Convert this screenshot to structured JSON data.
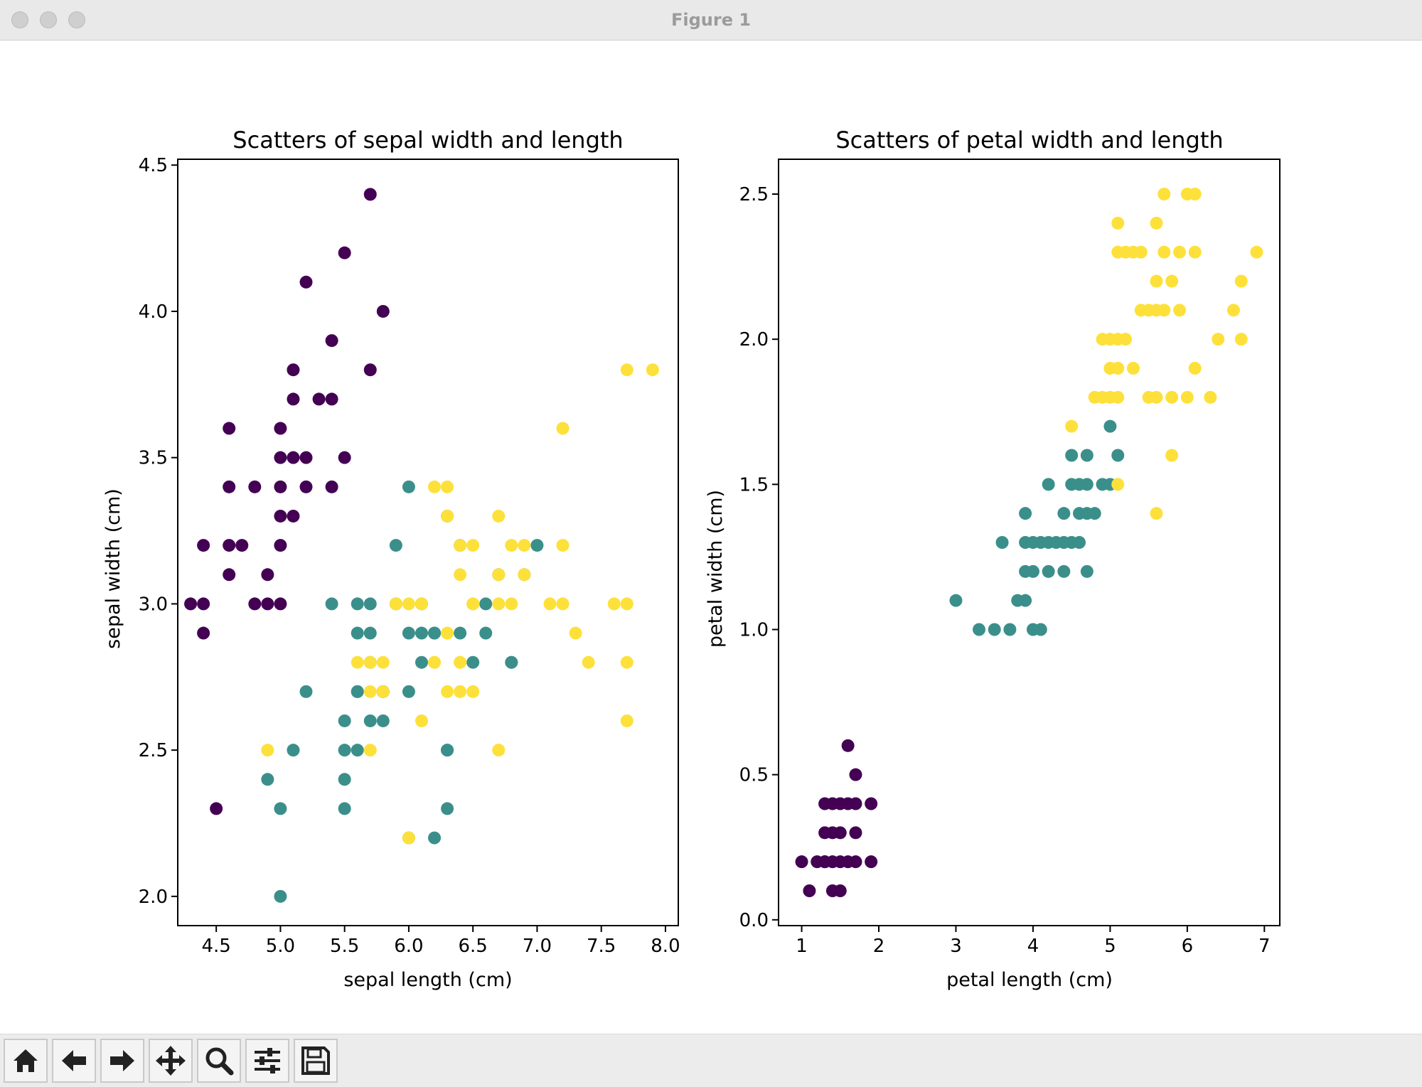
{
  "window": {
    "title": "Figure 1"
  },
  "toolbar": {
    "buttons": [
      {
        "name": "home-button",
        "icon": "home-icon"
      },
      {
        "name": "back-button",
        "icon": "arrow-left-icon"
      },
      {
        "name": "forward-button",
        "icon": "arrow-right-icon"
      },
      {
        "name": "pan-button",
        "icon": "move-icon"
      },
      {
        "name": "zoom-button",
        "icon": "search-icon"
      },
      {
        "name": "configure-subplots-button",
        "icon": "sliders-icon"
      },
      {
        "name": "save-button",
        "icon": "floppy-disk-icon"
      }
    ]
  },
  "colors": {
    "class0": "#440154",
    "class1": "#3b8f8b",
    "class2": "#fde13a"
  },
  "chart_data": [
    {
      "type": "scatter",
      "title": "Scatters of sepal width and length",
      "xlabel": "sepal length (cm)",
      "ylabel": "sepal width (cm)",
      "xlim": [
        4.2,
        8.1
      ],
      "ylim": [
        1.9,
        4.52
      ],
      "xticks": [
        4.5,
        5.0,
        5.5,
        6.0,
        6.5,
        7.0,
        7.5,
        8.0
      ],
      "xtick_labels": [
        "4.5",
        "5.0",
        "5.5",
        "6.0",
        "6.5",
        "7.0",
        "7.5",
        "8.0"
      ],
      "yticks": [
        2.0,
        2.5,
        3.0,
        3.5,
        4.0,
        4.5
      ],
      "ytick_labels": [
        "2.0",
        "2.5",
        "3.0",
        "3.5",
        "4.0",
        "4.5"
      ],
      "grid": false,
      "series": [
        {
          "color_key": "class0",
          "points": [
            [
              5.1,
              3.5
            ],
            [
              4.9,
              3.0
            ],
            [
              4.7,
              3.2
            ],
            [
              4.6,
              3.1
            ],
            [
              5.0,
              3.6
            ],
            [
              5.4,
              3.9
            ],
            [
              4.6,
              3.4
            ],
            [
              5.0,
              3.4
            ],
            [
              4.4,
              2.9
            ],
            [
              4.9,
              3.1
            ],
            [
              5.4,
              3.7
            ],
            [
              4.8,
              3.4
            ],
            [
              4.8,
              3.0
            ],
            [
              4.3,
              3.0
            ],
            [
              5.8,
              4.0
            ],
            [
              5.7,
              4.4
            ],
            [
              5.7,
              3.8
            ],
            [
              5.1,
              3.8
            ],
            [
              5.2,
              4.1
            ],
            [
              5.5,
              4.2
            ],
            [
              5.2,
              3.4
            ],
            [
              5.0,
              3.0
            ],
            [
              5.5,
              3.5
            ],
            [
              4.4,
              3.2
            ],
            [
              5.0,
              3.5
            ],
            [
              4.5,
              2.3
            ],
            [
              4.4,
              3.0
            ],
            [
              5.1,
              3.3
            ],
            [
              5.3,
              3.7
            ],
            [
              5.0,
              3.3
            ],
            [
              5.4,
              3.4
            ],
            [
              4.6,
              3.6
            ],
            [
              5.0,
              3.2
            ],
            [
              4.6,
              3.2
            ],
            [
              5.1,
              3.7
            ],
            [
              5.2,
              3.5
            ]
          ]
        },
        {
          "color_key": "class1",
          "points": [
            [
              7.0,
              3.2
            ],
            [
              6.4,
              3.2
            ],
            [
              6.9,
              3.1
            ],
            [
              5.5,
              2.3
            ],
            [
              6.5,
              2.8
            ],
            [
              5.7,
              2.8
            ],
            [
              6.3,
              3.3
            ],
            [
              4.9,
              2.4
            ],
            [
              6.6,
              2.9
            ],
            [
              5.2,
              2.7
            ],
            [
              5.0,
              2.0
            ],
            [
              5.9,
              3.0
            ],
            [
              6.0,
              2.2
            ],
            [
              6.1,
              2.9
            ],
            [
              5.6,
              2.9
            ],
            [
              6.7,
              3.1
            ],
            [
              5.6,
              3.0
            ],
            [
              5.8,
              2.7
            ],
            [
              6.2,
              2.2
            ],
            [
              5.6,
              2.5
            ],
            [
              5.9,
              3.2
            ],
            [
              6.1,
              2.8
            ],
            [
              6.3,
              2.5
            ],
            [
              6.8,
              2.8
            ],
            [
              6.0,
              2.9
            ],
            [
              5.7,
              2.6
            ],
            [
              5.5,
              2.4
            ],
            [
              5.8,
              2.7
            ],
            [
              6.0,
              2.7
            ],
            [
              5.4,
              3.0
            ],
            [
              6.0,
              3.4
            ],
            [
              6.3,
              2.3
            ],
            [
              5.5,
              2.5
            ],
            [
              5.5,
              2.6
            ],
            [
              6.1,
              3.0
            ],
            [
              5.8,
              2.6
            ],
            [
              5.0,
              2.3
            ],
            [
              5.6,
              2.7
            ],
            [
              5.7,
              3.0
            ],
            [
              6.2,
              2.9
            ],
            [
              5.1,
              2.5
            ],
            [
              5.7,
              2.9
            ],
            [
              6.6,
              3.0
            ],
            [
              6.4,
              2.9
            ],
            [
              6.8,
              2.8
            ],
            [
              5.6,
              2.7
            ],
            [
              6.3,
              2.5
            ],
            [
              6.2,
              2.9
            ]
          ]
        },
        {
          "color_key": "class2",
          "points": [
            [
              6.3,
              3.3
            ],
            [
              5.8,
              2.7
            ],
            [
              7.1,
              3.0
            ],
            [
              6.3,
              2.9
            ],
            [
              6.5,
              3.0
            ],
            [
              7.6,
              3.0
            ],
            [
              4.9,
              2.5
            ],
            [
              7.3,
              2.9
            ],
            [
              6.7,
              2.5
            ],
            [
              7.2,
              3.6
            ],
            [
              6.5,
              3.2
            ],
            [
              6.4,
              2.7
            ],
            [
              6.8,
              3.0
            ],
            [
              5.7,
              2.5
            ],
            [
              5.8,
              2.8
            ],
            [
              6.4,
              3.2
            ],
            [
              6.5,
              3.0
            ],
            [
              7.7,
              3.8
            ],
            [
              7.7,
              2.6
            ],
            [
              6.0,
              2.2
            ],
            [
              6.9,
              3.2
            ],
            [
              5.6,
              2.8
            ],
            [
              7.7,
              2.8
            ],
            [
              6.3,
              2.7
            ],
            [
              6.7,
              3.3
            ],
            [
              7.2,
              3.2
            ],
            [
              6.2,
              2.8
            ],
            [
              6.1,
              3.0
            ],
            [
              6.4,
              2.8
            ],
            [
              7.2,
              3.0
            ],
            [
              7.4,
              2.8
            ],
            [
              7.9,
              3.8
            ],
            [
              6.4,
              2.8
            ],
            [
              6.1,
              2.6
            ],
            [
              7.7,
              3.0
            ],
            [
              6.3,
              3.4
            ],
            [
              6.4,
              3.1
            ],
            [
              6.0,
              3.0
            ],
            [
              6.9,
              3.1
            ],
            [
              6.7,
              3.1
            ],
            [
              6.8,
              3.2
            ],
            [
              6.7,
              3.0
            ],
            [
              6.5,
              3.0
            ],
            [
              6.2,
              3.4
            ],
            [
              5.9,
              3.0
            ],
            [
              6.2,
              2.8
            ],
            [
              6.5,
              2.7
            ],
            [
              5.7,
              2.8
            ],
            [
              5.7,
              2.7
            ]
          ]
        }
      ]
    },
    {
      "type": "scatter",
      "title": "Scatters of petal width and length",
      "xlabel": "petal length (cm)",
      "ylabel": "petal width (cm)",
      "xlim": [
        0.7,
        7.2
      ],
      "ylim": [
        -0.02,
        2.62
      ],
      "xticks": [
        1,
        2,
        3,
        4,
        5,
        6,
        7
      ],
      "xtick_labels": [
        "1",
        "2",
        "3",
        "4",
        "5",
        "6",
        "7"
      ],
      "yticks": [
        0.0,
        0.5,
        1.0,
        1.5,
        2.0,
        2.5
      ],
      "ytick_labels": [
        "0.0",
        "0.5",
        "1.0",
        "1.5",
        "2.0",
        "2.5"
      ],
      "grid": false,
      "series": [
        {
          "color_key": "class0",
          "points": [
            [
              1.0,
              0.2
            ],
            [
              1.1,
              0.1
            ],
            [
              1.2,
              0.2
            ],
            [
              1.3,
              0.2
            ],
            [
              1.4,
              0.2
            ],
            [
              1.5,
              0.2
            ],
            [
              1.6,
              0.2
            ],
            [
              1.7,
              0.2
            ],
            [
              1.9,
              0.2
            ],
            [
              1.4,
              0.1
            ],
            [
              1.5,
              0.1
            ],
            [
              1.3,
              0.3
            ],
            [
              1.4,
              0.3
            ],
            [
              1.5,
              0.3
            ],
            [
              1.7,
              0.3
            ],
            [
              1.3,
              0.4
            ],
            [
              1.5,
              0.4
            ],
            [
              1.6,
              0.4
            ],
            [
              1.7,
              0.4
            ],
            [
              1.9,
              0.4
            ],
            [
              1.6,
              0.6
            ],
            [
              1.7,
              0.5
            ],
            [
              1.4,
              0.4
            ],
            [
              1.3,
              0.2
            ]
          ]
        },
        {
          "color_key": "class1",
          "points": [
            [
              3.0,
              1.1
            ],
            [
              3.3,
              1.0
            ],
            [
              3.5,
              1.0
            ],
            [
              3.7,
              1.0
            ],
            [
              4.0,
              1.0
            ],
            [
              4.1,
              1.0
            ],
            [
              3.8,
              1.1
            ],
            [
              3.9,
              1.1
            ],
            [
              3.9,
              1.2
            ],
            [
              4.0,
              1.2
            ],
            [
              4.2,
              1.2
            ],
            [
              4.4,
              1.2
            ],
            [
              4.7,
              1.2
            ],
            [
              3.6,
              1.3
            ],
            [
              3.9,
              1.3
            ],
            [
              4.0,
              1.3
            ],
            [
              4.1,
              1.3
            ],
            [
              4.2,
              1.3
            ],
            [
              4.3,
              1.3
            ],
            [
              4.4,
              1.3
            ],
            [
              4.5,
              1.3
            ],
            [
              4.6,
              1.3
            ],
            [
              3.9,
              1.4
            ],
            [
              4.4,
              1.4
            ],
            [
              4.6,
              1.4
            ],
            [
              4.7,
              1.4
            ],
            [
              4.8,
              1.4
            ],
            [
              4.2,
              1.5
            ],
            [
              4.5,
              1.5
            ],
            [
              4.6,
              1.5
            ],
            [
              4.7,
              1.5
            ],
            [
              4.9,
              1.5
            ],
            [
              5.0,
              1.5
            ],
            [
              4.5,
              1.6
            ],
            [
              4.7,
              1.6
            ],
            [
              5.1,
              1.6
            ],
            [
              5.0,
              1.7
            ]
          ]
        },
        {
          "color_key": "class2",
          "points": [
            [
              4.5,
              1.7
            ],
            [
              5.1,
              1.5
            ],
            [
              5.6,
              1.4
            ],
            [
              5.8,
              1.6
            ],
            [
              4.8,
              1.8
            ],
            [
              4.9,
              1.8
            ],
            [
              5.0,
              1.8
            ],
            [
              5.1,
              1.8
            ],
            [
              5.5,
              1.8
            ],
            [
              5.6,
              1.8
            ],
            [
              5.8,
              1.8
            ],
            [
              6.0,
              1.8
            ],
            [
              6.3,
              1.8
            ],
            [
              5.0,
              1.9
            ],
            [
              5.1,
              1.9
            ],
            [
              5.3,
              1.9
            ],
            [
              6.1,
              1.9
            ],
            [
              4.9,
              2.0
            ],
            [
              5.0,
              2.0
            ],
            [
              5.1,
              2.0
            ],
            [
              5.2,
              2.0
            ],
            [
              6.4,
              2.0
            ],
            [
              6.7,
              2.0
            ],
            [
              5.4,
              2.1
            ],
            [
              5.5,
              2.1
            ],
            [
              5.6,
              2.1
            ],
            [
              5.7,
              2.1
            ],
            [
              5.9,
              2.1
            ],
            [
              6.6,
              2.1
            ],
            [
              5.6,
              2.2
            ],
            [
              5.8,
              2.2
            ],
            [
              6.7,
              2.2
            ],
            [
              5.1,
              2.3
            ],
            [
              5.2,
              2.3
            ],
            [
              5.3,
              2.3
            ],
            [
              5.4,
              2.3
            ],
            [
              5.7,
              2.3
            ],
            [
              5.9,
              2.3
            ],
            [
              6.1,
              2.3
            ],
            [
              6.9,
              2.3
            ],
            [
              5.1,
              2.4
            ],
            [
              5.6,
              2.4
            ],
            [
              5.7,
              2.5
            ],
            [
              6.0,
              2.5
            ],
            [
              6.1,
              2.5
            ]
          ]
        }
      ]
    }
  ]
}
